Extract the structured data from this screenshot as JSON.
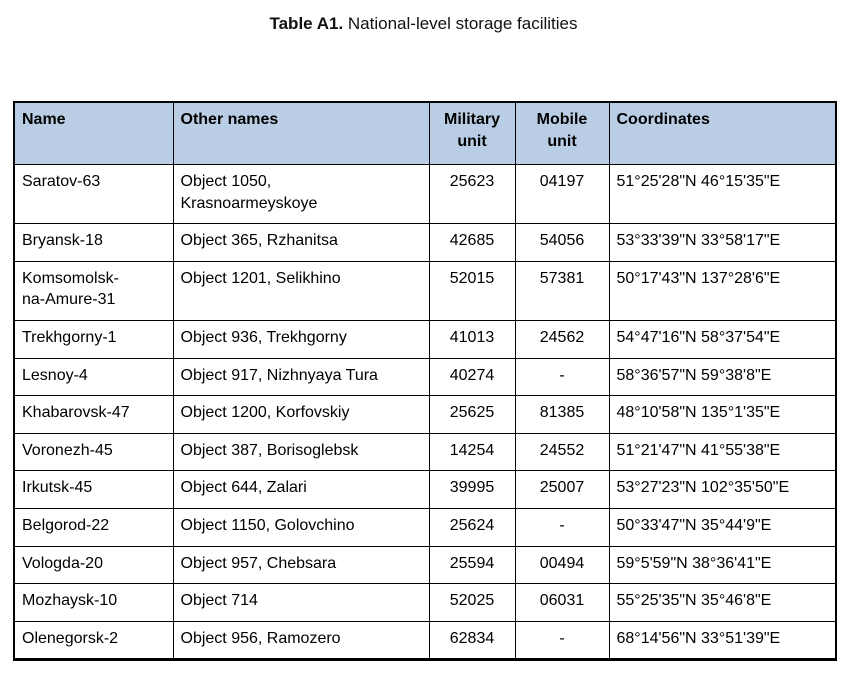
{
  "page": {
    "caption_label": "Table A1.",
    "caption_text": "National-level storage facilities"
  },
  "colors": {
    "header_bg": "#b9cde5",
    "border": "#000000"
  },
  "table": {
    "columns": [
      "Name",
      "Other names",
      "Military unit",
      "Mobile unit",
      "Coordinates"
    ],
    "rows": [
      {
        "name": "Saratov-63",
        "other_names": "Object 1050,\nKrasnoarmeyskoye",
        "military_unit": "25623",
        "mobile_unit": "04197",
        "coordinates": "51°25'28\"N 46°15'35\"E"
      },
      {
        "name": "Bryansk-18",
        "other_names": "Object 365, Rzhanitsa",
        "military_unit": "42685",
        "mobile_unit": "54056",
        "coordinates": "53°33'39\"N 33°58'17\"E"
      },
      {
        "name": "Komsomolsk-\nna-Amure-31",
        "other_names": "Object 1201, Selikhino",
        "military_unit": "52015",
        "mobile_unit": "57381",
        "coordinates": "50°17'43\"N 137°28'6\"E"
      },
      {
        "name": "Trekhgorny-1",
        "other_names": "Object 936, Trekhgorny",
        "military_unit": "41013",
        "mobile_unit": "24562",
        "coordinates": "54°47'16\"N 58°37'54\"E"
      },
      {
        "name": "Lesnoy-4",
        "other_names": "Object 917, Nizhnyaya Tura",
        "military_unit": "40274",
        "mobile_unit": "-",
        "coordinates": "58°36'57\"N 59°38'8\"E"
      },
      {
        "name": "Khabarovsk-47",
        "other_names": "Object 1200, Korfovskiy",
        "military_unit": "25625",
        "mobile_unit": "81385",
        "coordinates": "48°10'58\"N 135°1'35\"E"
      },
      {
        "name": "Voronezh-45",
        "other_names": "Object 387, Borisoglebsk",
        "military_unit": "14254",
        "mobile_unit": "24552",
        "coordinates": "51°21'47\"N 41°55'38\"E"
      },
      {
        "name": "Irkutsk-45",
        "other_names": "Object 644, Zalari",
        "military_unit": "39995",
        "mobile_unit": "25007",
        "coordinates": "53°27'23\"N 102°35'50\"E"
      },
      {
        "name": "Belgorod-22",
        "other_names": "Object 1150, Golovchino",
        "military_unit": "25624",
        "mobile_unit": "-",
        "coordinates": "50°33'47\"N 35°44'9\"E"
      },
      {
        "name": "Vologda-20",
        "other_names": "Object 957, Chebsara",
        "military_unit": "25594",
        "mobile_unit": "00494",
        "coordinates": "59°5'59\"N 38°36'41\"E"
      },
      {
        "name": "Mozhaysk-10",
        "other_names": "Object 714",
        "military_unit": "52025",
        "mobile_unit": "06031",
        "coordinates": "55°25'35\"N 35°46'8\"E"
      },
      {
        "name": "Olenegorsk-2",
        "other_names": "Object 956, Ramozero",
        "military_unit": "62834",
        "mobile_unit": "-",
        "coordinates": "68°14'56\"N 33°51'39\"E"
      }
    ]
  }
}
